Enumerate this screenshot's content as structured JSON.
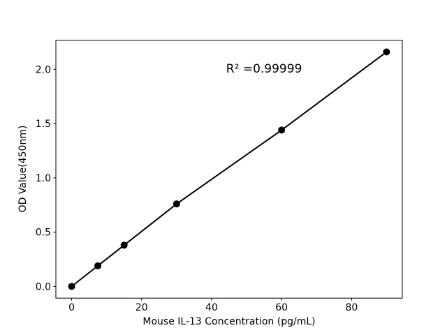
{
  "chart_data": {
    "type": "scatter",
    "title": "",
    "xlabel": "Mouse IL-13 Concentration (pg/mL)",
    "ylabel": "OD Value(450nm)",
    "x": [
      0,
      7.5,
      15,
      30,
      60,
      90
    ],
    "y": [
      0.0,
      0.19,
      0.38,
      0.76,
      1.44,
      2.16
    ],
    "xlim": [
      -4.5,
      94.5
    ],
    "ylim": [
      -0.108,
      2.268
    ],
    "x_ticks": [
      0,
      20,
      40,
      60,
      80
    ],
    "x_tick_labels": [
      "0",
      "20",
      "40",
      "60",
      "80"
    ],
    "y_ticks": [
      0.0,
      0.5,
      1.0,
      1.5,
      2.0
    ],
    "y_tick_labels": [
      "0.0",
      "0.5",
      "1.0",
      "1.5",
      "2.0"
    ],
    "annotation": {
      "text": "R² =0.99999",
      "x": 55,
      "y": 2.0
    },
    "grid": false,
    "legend": null,
    "line_color": "#000000",
    "marker_color": "#000000",
    "background_color": "#ffffff"
  }
}
